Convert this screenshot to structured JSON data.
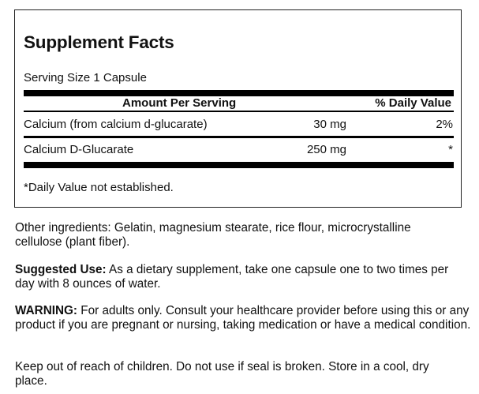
{
  "facts": {
    "title": "Supplement Facts",
    "serving_size": "Serving Size 1 Capsule",
    "header": {
      "amount": "Amount Per Serving",
      "dv": "% Daily Value"
    },
    "rows": [
      {
        "name": "Calcium (from calcium d-glucarate)",
        "amount": "30 mg",
        "dv": "2%"
      },
      {
        "name": "Calcium D-Glucarate",
        "amount": "250 mg",
        "dv": "*"
      }
    ],
    "footnote": "*Daily Value not established."
  },
  "info": {
    "other_ingredients": "Other ingredients: Gelatin, magnesium stearate, rice flour, microcrystalline cellulose (plant fiber).",
    "suggested_label": "Suggested Use:",
    "suggested_text": " As a dietary supplement, take one capsule one to two times per day with 8 ounces of water.",
    "warning_label": "WARNING:",
    "warning_text": " For adults only. Consult your healthcare provider before using this or any product if you are pregnant or nursing, taking medication or have a medical condition.",
    "storage": "Keep out of reach of children. Do not use if seal is broken. Store in a cool, dry place."
  }
}
